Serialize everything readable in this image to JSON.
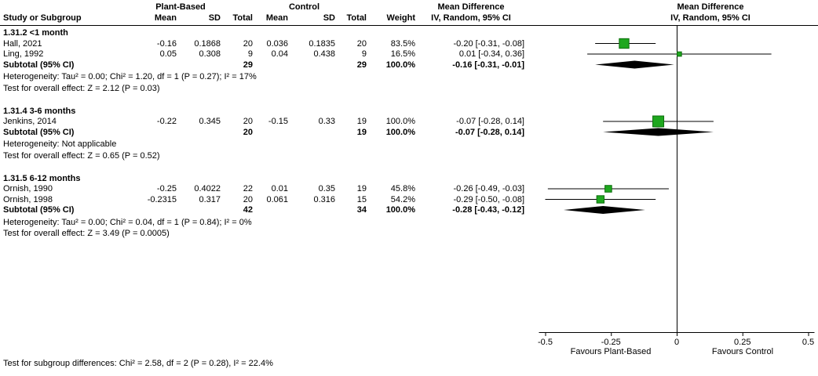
{
  "header": {
    "study_col": "Study or Subgroup",
    "group1": "Plant-Based",
    "group2": "Control",
    "mean": "Mean",
    "sd": "SD",
    "total": "Total",
    "weight": "Weight",
    "md_title": "Mean Difference",
    "ci_method": "IV, Random, 95% CI"
  },
  "footer": {
    "subgroup_test": "Test for subgroup differences: Chi² = 2.58, df = 2 (P = 0.28), I² = 22.4%"
  },
  "colors": {
    "marker_fill": "#1fa71f",
    "marker_stroke": "#0d6e0d",
    "diamond": "#000000",
    "line": "#000000"
  },
  "chart_data": {
    "type": "forest",
    "effect_measure": "Mean Difference",
    "model": "IV, Random, 95% CI",
    "x_axis": {
      "min": -0.5,
      "max": 0.5,
      "ticks": [
        -0.5,
        -0.25,
        0,
        0.25,
        0.5
      ],
      "tick_labels": [
        "-0.5",
        "-0.25",
        "0",
        "0.25",
        "0.5"
      ],
      "favours_left": "Favours Plant-Based",
      "favours_right": "Favours Control"
    },
    "subgroups": [
      {
        "title": "1.31.2 <1 month",
        "studies": [
          {
            "study": "Hall, 2021",
            "m1": "-0.16",
            "s1": "0.1868",
            "n1": "20",
            "m2": "0.036",
            "s2": "0.1835",
            "n2": "20",
            "weight": "83.5%",
            "weight_pct": 83.5,
            "md": -0.2,
            "ci_lo": -0.31,
            "ci_hi": -0.08,
            "ci_text": "-0.20 [-0.31, -0.08]"
          },
          {
            "study": "Ling, 1992",
            "m1": "0.05",
            "s1": "0.308",
            "n1": "9",
            "m2": "0.04",
            "s2": "0.438",
            "n2": "9",
            "weight": "16.5%",
            "weight_pct": 16.5,
            "md": 0.01,
            "ci_lo": -0.34,
            "ci_hi": 0.36,
            "ci_text": "0.01 [-0.34, 0.36]"
          }
        ],
        "subtotal": {
          "label": "Subtotal (95% CI)",
          "n1": "29",
          "n2": "29",
          "weight": "100.0%",
          "md": -0.16,
          "ci_lo": -0.31,
          "ci_hi": -0.01,
          "ci_text": "-0.16 [-0.31, -0.01]"
        },
        "heterogeneity": "Heterogeneity: Tau² = 0.00; Chi² = 1.20, df = 1 (P = 0.27); I² = 17%",
        "overall_effect": "Test for overall effect: Z = 2.12 (P = 0.03)"
      },
      {
        "title": "1.31.4 3-6 months",
        "studies": [
          {
            "study": "Jenkins, 2014",
            "m1": "-0.22",
            "s1": "0.345",
            "n1": "20",
            "m2": "-0.15",
            "s2": "0.33",
            "n2": "19",
            "weight": "100.0%",
            "weight_pct": 100,
            "md": -0.07,
            "ci_lo": -0.28,
            "ci_hi": 0.14,
            "ci_text": "-0.07 [-0.28, 0.14]"
          }
        ],
        "subtotal": {
          "label": "Subtotal (95% CI)",
          "n1": "20",
          "n2": "19",
          "weight": "100.0%",
          "md": -0.07,
          "ci_lo": -0.28,
          "ci_hi": 0.14,
          "ci_text": "-0.07 [-0.28, 0.14]"
        },
        "heterogeneity": "Heterogeneity: Not applicable",
        "overall_effect": "Test for overall effect: Z = 0.65 (P = 0.52)"
      },
      {
        "title": "1.31.5 6-12 months",
        "studies": [
          {
            "study": "Ornish, 1990",
            "m1": "-0.25",
            "s1": "0.4022",
            "n1": "22",
            "m2": "0.01",
            "s2": "0.35",
            "n2": "19",
            "weight": "45.8%",
            "weight_pct": 45.8,
            "md": -0.26,
            "ci_lo": -0.49,
            "ci_hi": -0.03,
            "ci_text": "-0.26 [-0.49, -0.03]"
          },
          {
            "study": "Ornish, 1998",
            "m1": "-0.2315",
            "s1": "0.317",
            "n1": "20",
            "m2": "0.061",
            "s2": "0.316",
            "n2": "15",
            "weight": "54.2%",
            "weight_pct": 54.2,
            "md": -0.29,
            "ci_lo": -0.5,
            "ci_hi": -0.08,
            "ci_text": "-0.29 [-0.50, -0.08]"
          }
        ],
        "subtotal": {
          "label": "Subtotal (95% CI)",
          "n1": "42",
          "n2": "34",
          "weight": "100.0%",
          "md": -0.28,
          "ci_lo": -0.43,
          "ci_hi": -0.12,
          "ci_text": "-0.28 [-0.43, -0.12]"
        },
        "heterogeneity": "Heterogeneity: Tau² = 0.00; Chi² = 0.04, df = 1 (P = 0.84); I² = 0%",
        "overall_effect": "Test for overall effect: Z = 3.49 (P = 0.0005)"
      }
    ]
  }
}
